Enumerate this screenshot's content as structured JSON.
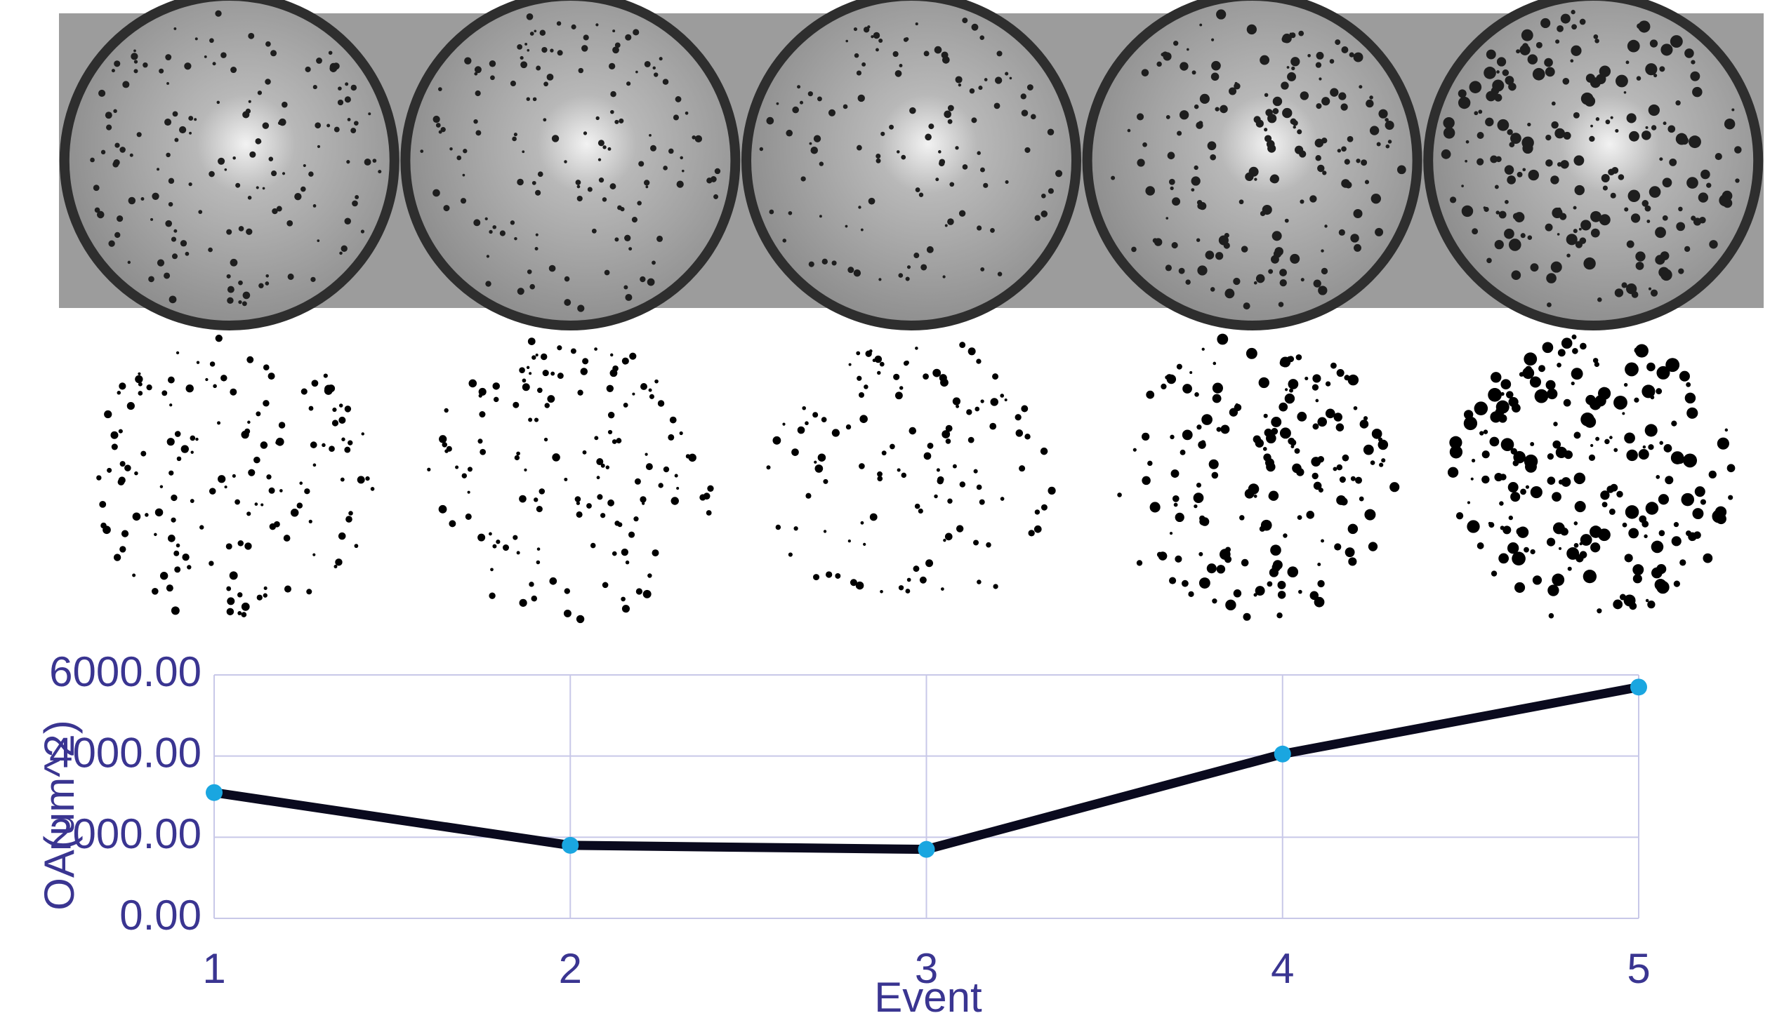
{
  "chart_data": {
    "type": "line",
    "x": [
      1,
      2,
      3,
      4,
      5
    ],
    "values": [
      3100,
      1800,
      1700,
      4050,
      5700
    ],
    "color": "#0a0a1e",
    "marker_color": "#1aa6e0",
    "xlim": [
      1,
      5
    ],
    "xticks": [
      1,
      2,
      3,
      4,
      5
    ],
    "ylim": [
      0,
      6000
    ],
    "yticks": [
      {
        "value": 0,
        "label": "0.00"
      },
      {
        "value": 2000,
        "label": "2000.00"
      },
      {
        "value": 4000,
        "label": "4000.00"
      },
      {
        "value": 6000,
        "label": "6000.00"
      }
    ],
    "x_label": "Event",
    "y_label": "OA(um^2)",
    "grid": true
  }
}
